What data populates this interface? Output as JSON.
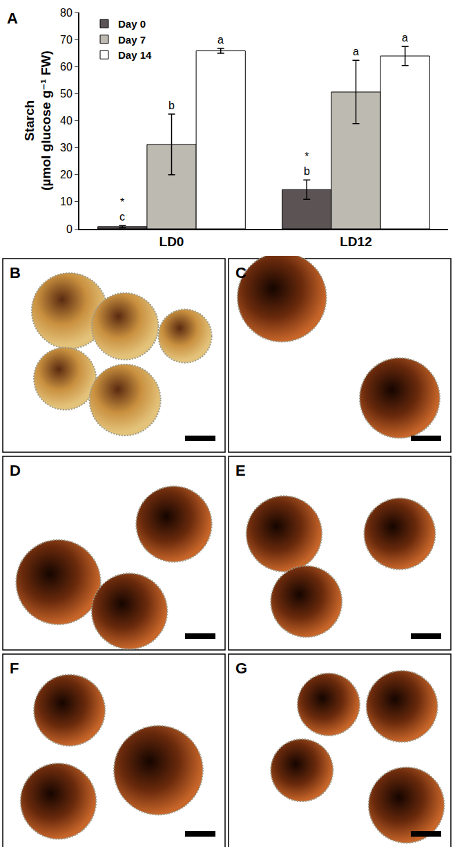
{
  "chart_data": {
    "type": "bar",
    "panel_label": "A",
    "y_label": "Starch\n(µmol glucose g⁻¹ FW)",
    "categories": [
      "LD0",
      "LD12"
    ],
    "series": [
      {
        "name": "Day 0",
        "color": "#5b5354",
        "values": [
          0.8,
          14.5
        ],
        "errors": [
          0.4,
          3.6
        ],
        "letters": [
          "c",
          "b"
        ],
        "marks": [
          "*",
          "*"
        ]
      },
      {
        "name": "Day 7",
        "color": "#bdbab1",
        "values": [
          31.2,
          50.6
        ],
        "errors": [
          11.2,
          11.7
        ],
        "letters": [
          "b",
          "a"
        ]
      },
      {
        "name": "Day 14",
        "color": "#ffffff",
        "values": [
          65.8,
          63.9
        ],
        "errors": [
          0.9,
          3.5
        ],
        "letters": [
          "a",
          "a"
        ]
      }
    ],
    "ylim": [
      0,
      80
    ],
    "yticks": [
      0,
      10,
      20,
      30,
      40,
      50,
      60,
      70,
      80
    ],
    "grid": false,
    "legend": "upper left"
  },
  "panels": [
    {
      "label": "B"
    },
    {
      "label": "C"
    },
    {
      "label": "D"
    },
    {
      "label": "E"
    },
    {
      "label": "F"
    },
    {
      "label": "G"
    }
  ]
}
